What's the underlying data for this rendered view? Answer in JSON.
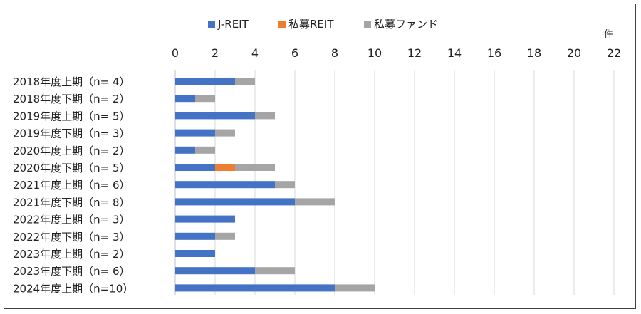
{
  "chart_data": {
    "type": "bar",
    "orientation": "horizontal",
    "stacked": true,
    "unit_label": "件",
    "categories": [
      "2018年度上期（n=  4）",
      "2018年度下期（n=  2）",
      "2019年度上期（n=  5）",
      "2019年度下期（n=  3）",
      "2020年度上期（n=  2）",
      "2020年度下期（n=  5）",
      "2021年度上期（n=  6）",
      "2021年度下期（n=  8）",
      "2022年度上期（n=  3）",
      "2022年度下期（n=  3）",
      "2023年度上期（n=  2）",
      "2023年度下期（n=  6）",
      "2024年度上期（n=10）"
    ],
    "series": [
      {
        "name": "J-REIT",
        "color": "#4472C4",
        "values": [
          3,
          1,
          4,
          2,
          1,
          2,
          5,
          6,
          3,
          2,
          2,
          4,
          8
        ]
      },
      {
        "name": "私募REIT",
        "color": "#ED7D31",
        "values": [
          0,
          0,
          0,
          0,
          0,
          1,
          0,
          0,
          0,
          0,
          0,
          0,
          0
        ]
      },
      {
        "name": "私募ファンド",
        "color": "#A5A5A5",
        "values": [
          1,
          1,
          1,
          1,
          1,
          2,
          1,
          2,
          0,
          1,
          0,
          2,
          2
        ]
      }
    ],
    "xlim": [
      0,
      22
    ],
    "xticks": [
      0,
      2,
      4,
      6,
      8,
      10,
      12,
      14,
      16,
      18,
      20,
      22
    ],
    "grid": true,
    "legend_position": "top-center",
    "axis_position": "top"
  }
}
